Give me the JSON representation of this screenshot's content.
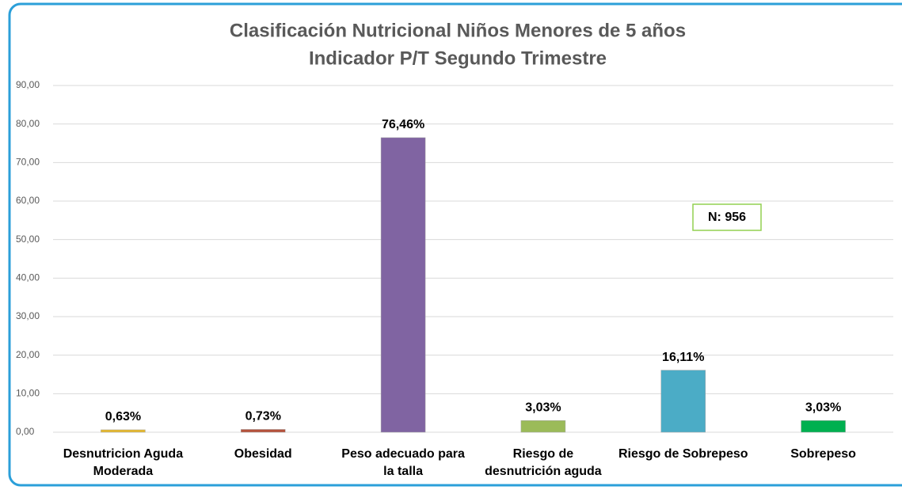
{
  "chart_data": {
    "type": "bar",
    "title": "Clasificación Nutricional Niños Menores de 5 años",
    "subtitle": "Indicador P/T Segundo Trimestre",
    "categories": [
      "Desnutricion Aguda Moderada",
      "Obesidad",
      "Peso adecuado para la talla",
      "Riesgo de desnutrición aguda",
      "Riesgo de Sobrepeso",
      "Sobrepeso"
    ],
    "values": [
      0.63,
      0.73,
      76.46,
      3.03,
      16.11,
      3.03
    ],
    "value_labels": [
      "0,63%",
      "0,73%",
      "76,46%",
      "3,03%",
      "16,11%",
      "3,03%"
    ],
    "colors": [
      "#e6b82a",
      "#b5523b",
      "#8064a2",
      "#9bbb59",
      "#4bacc6",
      "#00b050"
    ],
    "ylim": [
      0,
      90
    ],
    "yticks": [
      {
        "value": 0,
        "label": "0,00"
      },
      {
        "value": 10,
        "label": "10,00"
      },
      {
        "value": 20,
        "label": "20,00"
      },
      {
        "value": 30,
        "label": "30,00"
      },
      {
        "value": 40,
        "label": "40,00"
      },
      {
        "value": 50,
        "label": "50,00"
      },
      {
        "value": 60,
        "label": "60,00"
      },
      {
        "value": 70,
        "label": "70,00"
      },
      {
        "value": 80,
        "label": "80,00"
      },
      {
        "value": 90,
        "label": "90,00"
      }
    ],
    "grid": true,
    "annotation": "N: 956"
  }
}
